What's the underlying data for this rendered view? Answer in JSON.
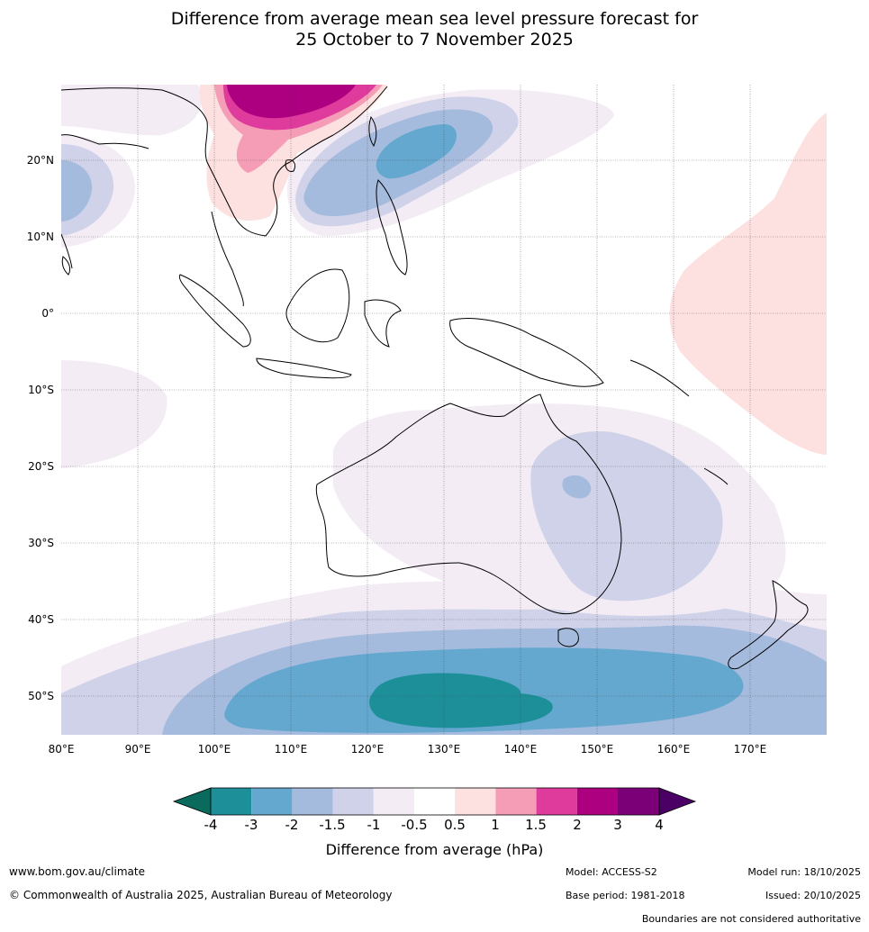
{
  "title": {
    "line1": "Difference from average mean sea level pressure forecast for",
    "line2": "25 October to 7 November 2025"
  },
  "map": {
    "lat_labels": [
      "20°N",
      "10°N",
      "0°",
      "10°S",
      "20°S",
      "30°S",
      "40°S",
      "50°S"
    ],
    "lon_labels": [
      "80°E",
      "90°E",
      "100°E",
      "110°E",
      "120°E",
      "130°E",
      "140°E",
      "150°E",
      "160°E",
      "170°E"
    ]
  },
  "colorbar": {
    "title": "Difference from average (hPa)",
    "tick_labels": [
      "-4",
      "-3",
      "-2",
      "-1.5",
      "-1",
      "-0.5",
      "0.5",
      "1",
      "1.5",
      "2",
      "3",
      "4"
    ],
    "colors": [
      "#0a6a5c",
      "#1d8f99",
      "#64a8cf",
      "#a5bbdd",
      "#cfd2e8",
      "#f3ecf5",
      "#ffffff",
      "#fde0e0",
      "#f59db6",
      "#df3b9c",
      "#ad0080",
      "#7b0077",
      "#4a0064"
    ]
  },
  "footer": {
    "website": "www.bom.gov.au/climate",
    "copyright": "© Commonwealth of Australia 2025, Australian Bureau of Meteorology",
    "model": "Model: ACCESS-S2",
    "base_period": "Base period: 1981-2018",
    "model_run": "Model run: 18/10/2025",
    "issued": "Issued: 20/10/2025",
    "disclaimer": "Boundaries are not considered authoritative"
  }
}
